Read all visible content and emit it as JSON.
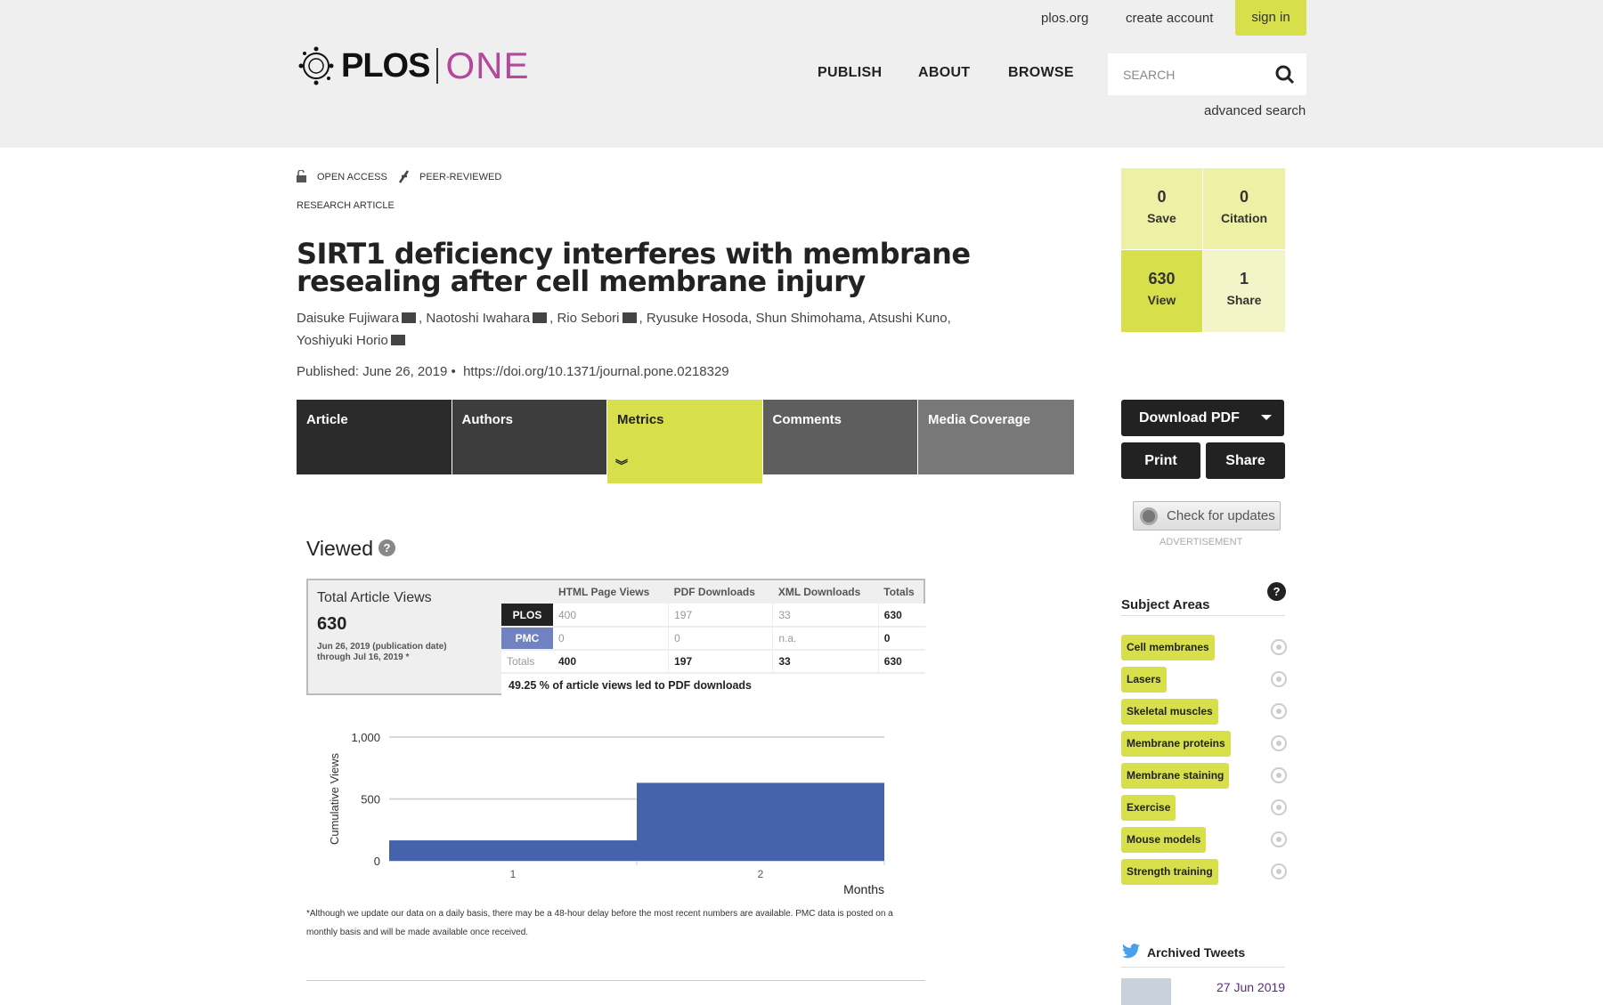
{
  "header": {
    "links": [
      "plos.org",
      "create account"
    ],
    "sign_in": "sign in",
    "logo_plos": "PLOS",
    "logo_one": "ONE",
    "nav": [
      "PUBLISH",
      "ABOUT",
      "BROWSE"
    ],
    "search_placeholder": "SEARCH",
    "advanced_search": "advanced search"
  },
  "article": {
    "open_access": "OPEN ACCESS",
    "peer_reviewed": "PEER-REVIEWED",
    "type": "RESEARCH ARTICLE",
    "title": "SIRT1 deficiency interferes with membrane resealing after cell membrane injury",
    "authors": [
      "Daisuke Fujiwara",
      "Naotoshi Iwahara",
      "Rio Sebori",
      "Ryusuke Hosoda",
      "Shun Shimohama",
      "Atsushi Kuno",
      "Yoshiyuki Horio"
    ],
    "published": "Published: June 26, 2019",
    "doi": "https://doi.org/10.1371/journal.pone.0218329"
  },
  "tabs": [
    {
      "label": "Article",
      "color": "#2b2b2b"
    },
    {
      "label": "Authors",
      "color": "#3d3d3d"
    },
    {
      "label": "Metrics",
      "color": "#d7df4b",
      "active": true
    },
    {
      "label": "Comments",
      "color": "#5e5e5e"
    },
    {
      "label": "Media Coverage",
      "color": "#787878"
    }
  ],
  "metrics": {
    "save": {
      "n": "0",
      "l": "Save"
    },
    "citation": {
      "n": "0",
      "l": "Citation"
    },
    "view": {
      "n": "630",
      "l": "View"
    },
    "share": {
      "n": "1",
      "l": "Share"
    }
  },
  "actions": {
    "download_pdf": "Download PDF",
    "print": "Print",
    "share": "Share",
    "check_updates": "Check for updates",
    "advertisement": "ADVERTISEMENT"
  },
  "viewed": {
    "heading": "Viewed",
    "total_label": "Total Article Views",
    "total": "630",
    "date_range_1": "Jun 26, 2019 (publication date)",
    "date_range_2": "through Jul 16, 2019 *",
    "columns": [
      "HTML Page Views",
      "PDF Downloads",
      "XML Downloads",
      "Totals"
    ],
    "rows": [
      {
        "source": "PLOS",
        "values": [
          "400",
          "197",
          "33",
          "630"
        ]
      },
      {
        "source": "PMC",
        "values": [
          "0",
          "0",
          "n.a.",
          "0"
        ]
      },
      {
        "source": "Totals",
        "values": [
          "400",
          "197",
          "33",
          "630"
        ]
      }
    ],
    "ratio": "49.25 % of article views led to PDF downloads",
    "footnote": "*Although we update our data on a daily basis, there may be a 48-hour delay before the most recent numbers are available. PMC data is posted on a monthly basis and will be made available once received."
  },
  "chart_data": {
    "type": "area",
    "x": [
      1,
      2
    ],
    "values": [
      165,
      630
    ],
    "xlabel": "Months",
    "ylabel": "Cumulative Views",
    "ylim": [
      0,
      1000
    ],
    "yticks": [
      "0",
      "500",
      "1,000"
    ],
    "xticks": [
      "1",
      "2"
    ],
    "color": "#4563aa",
    "grid": true
  },
  "subjects": {
    "heading": "Subject Areas",
    "items": [
      "Cell membranes",
      "Lasers",
      "Skeletal muscles",
      "Membrane proteins",
      "Membrane staining",
      "Exercise",
      "Mouse models",
      "Strength training"
    ]
  },
  "tweets": {
    "heading": "Archived Tweets",
    "date": "27 Jun 2019"
  }
}
